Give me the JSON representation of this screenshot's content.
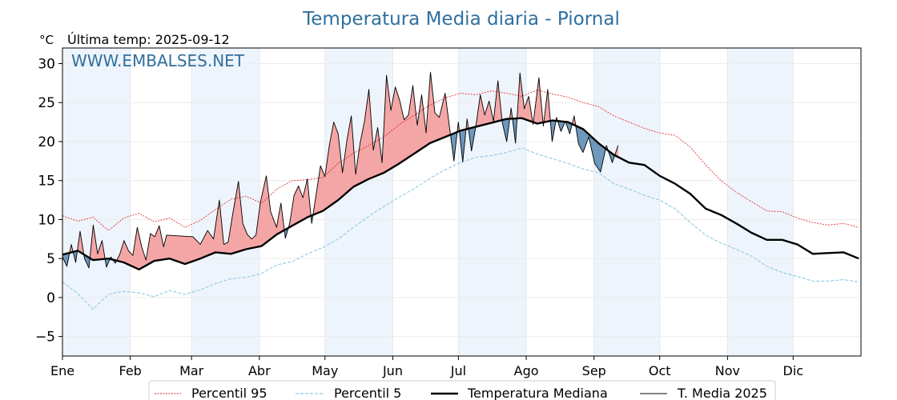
{
  "chart_data": {
    "type": "line",
    "title": "Temperatura Media diaria - Piornal",
    "unit_label": "°C",
    "subtitle": "Última temp: 2025-09-12",
    "watermark": "WWW.EMBALSES.NET",
    "ylim": [
      -7.5,
      32
    ],
    "yticks": [
      -5,
      0,
      5,
      10,
      15,
      20,
      25,
      30
    ],
    "ytick_labels": [
      "−5",
      "0",
      "5",
      "10",
      "15",
      "20",
      "25",
      "30"
    ],
    "months": [
      "Ene",
      "Feb",
      "Mar",
      "Abr",
      "May",
      "Jun",
      "Jul",
      "Ago",
      "Sep",
      "Oct",
      "Nov",
      "Dic"
    ],
    "grid": true,
    "legend_position": "bottom-center",
    "colors": {
      "p95": "#e31a1c",
      "p5": "#8ecae6",
      "median": "#000000",
      "media2025": "#000000",
      "above": "#f4a6a6",
      "below": "#6f98bd",
      "title": "#2f6f9f",
      "shade": "#eef4fb"
    },
    "series": [
      {
        "key": "p95",
        "name": "Percentil 95",
        "points": [
          [
            1,
            10.5
          ],
          [
            8,
            9.8
          ],
          [
            15,
            10.3
          ],
          [
            22,
            8.6
          ],
          [
            29,
            10.2
          ],
          [
            36,
            10.8
          ],
          [
            43,
            9.7
          ],
          [
            50,
            10.2
          ],
          [
            57,
            9.0
          ],
          [
            64,
            9.9
          ],
          [
            71,
            11.3
          ],
          [
            78,
            12.6
          ],
          [
            85,
            13.0
          ],
          [
            92,
            12.1
          ],
          [
            99,
            13.9
          ],
          [
            106,
            15.0
          ],
          [
            113,
            15.1
          ],
          [
            120,
            15.4
          ],
          [
            127,
            17.2
          ],
          [
            134,
            18.5
          ],
          [
            141,
            19.5
          ],
          [
            148,
            20.6
          ],
          [
            155,
            22.2
          ],
          [
            162,
            23.4
          ],
          [
            169,
            24.7
          ],
          [
            176,
            25.6
          ],
          [
            183,
            26.2
          ],
          [
            190,
            26.0
          ],
          [
            197,
            26.5
          ],
          [
            204,
            26.2
          ],
          [
            211,
            25.8
          ],
          [
            218,
            26.6
          ],
          [
            225,
            26.1
          ],
          [
            232,
            25.7
          ],
          [
            239,
            25.0
          ],
          [
            246,
            24.5
          ],
          [
            253,
            23.3
          ],
          [
            260,
            22.5
          ],
          [
            267,
            21.7
          ],
          [
            274,
            21.1
          ],
          [
            281,
            20.8
          ],
          [
            288,
            19.3
          ],
          [
            295,
            17.0
          ],
          [
            302,
            15.0
          ],
          [
            309,
            13.5
          ],
          [
            316,
            12.3
          ],
          [
            323,
            11.1
          ],
          [
            330,
            11.0
          ],
          [
            337,
            10.2
          ],
          [
            344,
            9.6
          ],
          [
            351,
            9.3
          ],
          [
            358,
            9.5
          ],
          [
            365,
            9.0
          ]
        ]
      },
      {
        "key": "p5",
        "name": "Percentil 5",
        "points": [
          [
            1,
            2.0
          ],
          [
            8,
            0.5
          ],
          [
            15,
            -1.5
          ],
          [
            22,
            0.4
          ],
          [
            29,
            0.8
          ],
          [
            36,
            0.6
          ],
          [
            43,
            0.1
          ],
          [
            50,
            0.9
          ],
          [
            57,
            0.4
          ],
          [
            64,
            1.0
          ],
          [
            71,
            1.8
          ],
          [
            78,
            2.4
          ],
          [
            85,
            2.6
          ],
          [
            92,
            3.1
          ],
          [
            99,
            4.2
          ],
          [
            106,
            4.6
          ],
          [
            113,
            5.6
          ],
          [
            120,
            6.4
          ],
          [
            127,
            7.5
          ],
          [
            134,
            9.0
          ],
          [
            141,
            10.4
          ],
          [
            148,
            11.7
          ],
          [
            155,
            12.9
          ],
          [
            162,
            14.0
          ],
          [
            169,
            15.3
          ],
          [
            176,
            16.4
          ],
          [
            183,
            17.3
          ],
          [
            190,
            18.0
          ],
          [
            197,
            18.2
          ],
          [
            204,
            18.6
          ],
          [
            211,
            19.2
          ],
          [
            218,
            18.4
          ],
          [
            225,
            17.8
          ],
          [
            232,
            17.2
          ],
          [
            239,
            16.5
          ],
          [
            246,
            16.0
          ],
          [
            253,
            14.6
          ],
          [
            260,
            13.9
          ],
          [
            267,
            13.1
          ],
          [
            274,
            12.5
          ],
          [
            281,
            11.4
          ],
          [
            288,
            9.6
          ],
          [
            295,
            8.0
          ],
          [
            302,
            7.0
          ],
          [
            309,
            6.2
          ],
          [
            316,
            5.3
          ],
          [
            323,
            4.0
          ],
          [
            330,
            3.2
          ],
          [
            337,
            2.7
          ],
          [
            344,
            2.1
          ],
          [
            351,
            2.1
          ],
          [
            358,
            2.3
          ],
          [
            365,
            2.0
          ]
        ]
      },
      {
        "key": "median",
        "name": "Temperatura Mediana",
        "points": [
          [
            1,
            5.5
          ],
          [
            8,
            6.0
          ],
          [
            15,
            4.8
          ],
          [
            22,
            5.0
          ],
          [
            29,
            4.5
          ],
          [
            36,
            3.6
          ],
          [
            43,
            4.7
          ],
          [
            50,
            5.0
          ],
          [
            57,
            4.3
          ],
          [
            64,
            5.0
          ],
          [
            71,
            5.8
          ],
          [
            78,
            5.6
          ],
          [
            85,
            6.2
          ],
          [
            92,
            6.6
          ],
          [
            99,
            8.1
          ],
          [
            106,
            9.2
          ],
          [
            113,
            10.3
          ],
          [
            120,
            11.1
          ],
          [
            127,
            12.5
          ],
          [
            134,
            14.2
          ],
          [
            141,
            15.2
          ],
          [
            148,
            16.0
          ],
          [
            155,
            17.2
          ],
          [
            162,
            18.5
          ],
          [
            169,
            19.8
          ],
          [
            176,
            20.6
          ],
          [
            183,
            21.4
          ],
          [
            190,
            21.9
          ],
          [
            197,
            22.4
          ],
          [
            204,
            22.9
          ],
          [
            211,
            23.0
          ],
          [
            218,
            22.3
          ],
          [
            225,
            22.7
          ],
          [
            232,
            22.5
          ],
          [
            239,
            21.6
          ],
          [
            246,
            19.8
          ],
          [
            253,
            18.3
          ],
          [
            260,
            17.3
          ],
          [
            267,
            17.0
          ],
          [
            274,
            15.6
          ],
          [
            281,
            14.6
          ],
          [
            288,
            13.3
          ],
          [
            295,
            11.4
          ],
          [
            302,
            10.6
          ],
          [
            309,
            9.5
          ],
          [
            316,
            8.3
          ],
          [
            323,
            7.4
          ],
          [
            330,
            7.4
          ],
          [
            337,
            6.8
          ],
          [
            344,
            5.6
          ],
          [
            351,
            5.7
          ],
          [
            358,
            5.8
          ],
          [
            365,
            5.0
          ]
        ]
      },
      {
        "key": "media2025",
        "name": "T. Media 2025",
        "points": [
          [
            1,
            5.2
          ],
          [
            4,
            4.0
          ],
          [
            7,
            6.8
          ],
          [
            10,
            4.5
          ],
          [
            13,
            8.5
          ],
          [
            16,
            5.0
          ],
          [
            19,
            3.8
          ],
          [
            22,
            9.3
          ],
          [
            25,
            5.6
          ],
          [
            28,
            7.3
          ],
          [
            31,
            3.9
          ],
          [
            34,
            5.2
          ],
          [
            37,
            4.4
          ],
          [
            40,
            5.5
          ],
          [
            43,
            7.3
          ],
          [
            46,
            6.0
          ],
          [
            49,
            5.4
          ],
          [
            52,
            9.0
          ],
          [
            55,
            6.5
          ],
          [
            58,
            4.8
          ],
          [
            61,
            8.2
          ],
          [
            64,
            7.8
          ],
          [
            67,
            9.2
          ],
          [
            70,
            6.5
          ],
          [
            72,
            8.0
          ],
          [
            90,
            7.8
          ],
          [
            95,
            6.8
          ],
          [
            100,
            8.6
          ],
          [
            104,
            7.5
          ],
          [
            108,
            12.5
          ],
          [
            111,
            6.8
          ],
          [
            114,
            7.1
          ],
          [
            117,
            10.6
          ],
          [
            121,
            14.9
          ],
          [
            124,
            9.5
          ],
          [
            127,
            8.1
          ],
          [
            130,
            7.5
          ],
          [
            133,
            8.0
          ],
          [
            136,
            12.2
          ],
          [
            140,
            15.6
          ],
          [
            143,
            11.0
          ],
          [
            147,
            9.0
          ],
          [
            150,
            12.1
          ],
          [
            153,
            7.6
          ],
          [
            156,
            9.5
          ],
          [
            159,
            13.1
          ],
          [
            162,
            14.3
          ],
          [
            165,
            12.8
          ],
          [
            168,
            15.2
          ],
          [
            171,
            9.5
          ],
          [
            174,
            13.2
          ],
          [
            177,
            16.9
          ],
          [
            180,
            15.5
          ],
          [
            183,
            19.5
          ],
          [
            186,
            22.5
          ],
          [
            189,
            21.0
          ],
          [
            192,
            16.0
          ],
          [
            195,
            20.1
          ],
          [
            198,
            23.3
          ],
          [
            201,
            15.8
          ],
          [
            204,
            19.8
          ],
          [
            207,
            22.6
          ],
          [
            210,
            26.7
          ],
          [
            213,
            18.9
          ],
          [
            216,
            21.8
          ],
          [
            219,
            17.3
          ],
          [
            222,
            28.5
          ],
          [
            225,
            24.0
          ],
          [
            228,
            27.0
          ],
          [
            231,
            25.3
          ],
          [
            234,
            22.8
          ],
          [
            237,
            23.4
          ],
          [
            240,
            27.2
          ],
          [
            243,
            22.1
          ],
          [
            246,
            26.0
          ],
          [
            249,
            21.1
          ],
          [
            252,
            28.9
          ],
          [
            255,
            23.7
          ],
          [
            258,
            23.1
          ],
          [
            262,
            26.2
          ],
          [
            265,
            21.8
          ],
          [
            268,
            17.5
          ],
          [
            271,
            22.5
          ],
          [
            274,
            17.4
          ],
          [
            277,
            22.9
          ],
          [
            280,
            18.8
          ],
          [
            283,
            22.0
          ],
          [
            286,
            26.0
          ],
          [
            289,
            23.4
          ],
          [
            292,
            25.2
          ],
          [
            295,
            22.6
          ],
          [
            298,
            27.8
          ],
          [
            301,
            22.4
          ],
          [
            304,
            20.0
          ],
          [
            307,
            24.3
          ],
          [
            310,
            19.8
          ],
          [
            313,
            28.8
          ],
          [
            316,
            24.2
          ],
          [
            319,
            25.8
          ],
          [
            322,
            22.2
          ],
          [
            326,
            28.2
          ],
          [
            329,
            22.0
          ],
          [
            332,
            26.7
          ],
          [
            335,
            20.0
          ],
          [
            338,
            23.1
          ],
          [
            341,
            21.3
          ],
          [
            344,
            22.6
          ],
          [
            347,
            21.0
          ],
          [
            350,
            23.3
          ],
          [
            353,
            19.7
          ],
          [
            356,
            18.6
          ],
          [
            360,
            20.6
          ],
          [
            364,
            17.2
          ],
          [
            368,
            16.1
          ],
          [
            372,
            19.5
          ],
          [
            376,
            17.3
          ],
          [
            380,
            19.5
          ]
        ]
      }
    ]
  }
}
